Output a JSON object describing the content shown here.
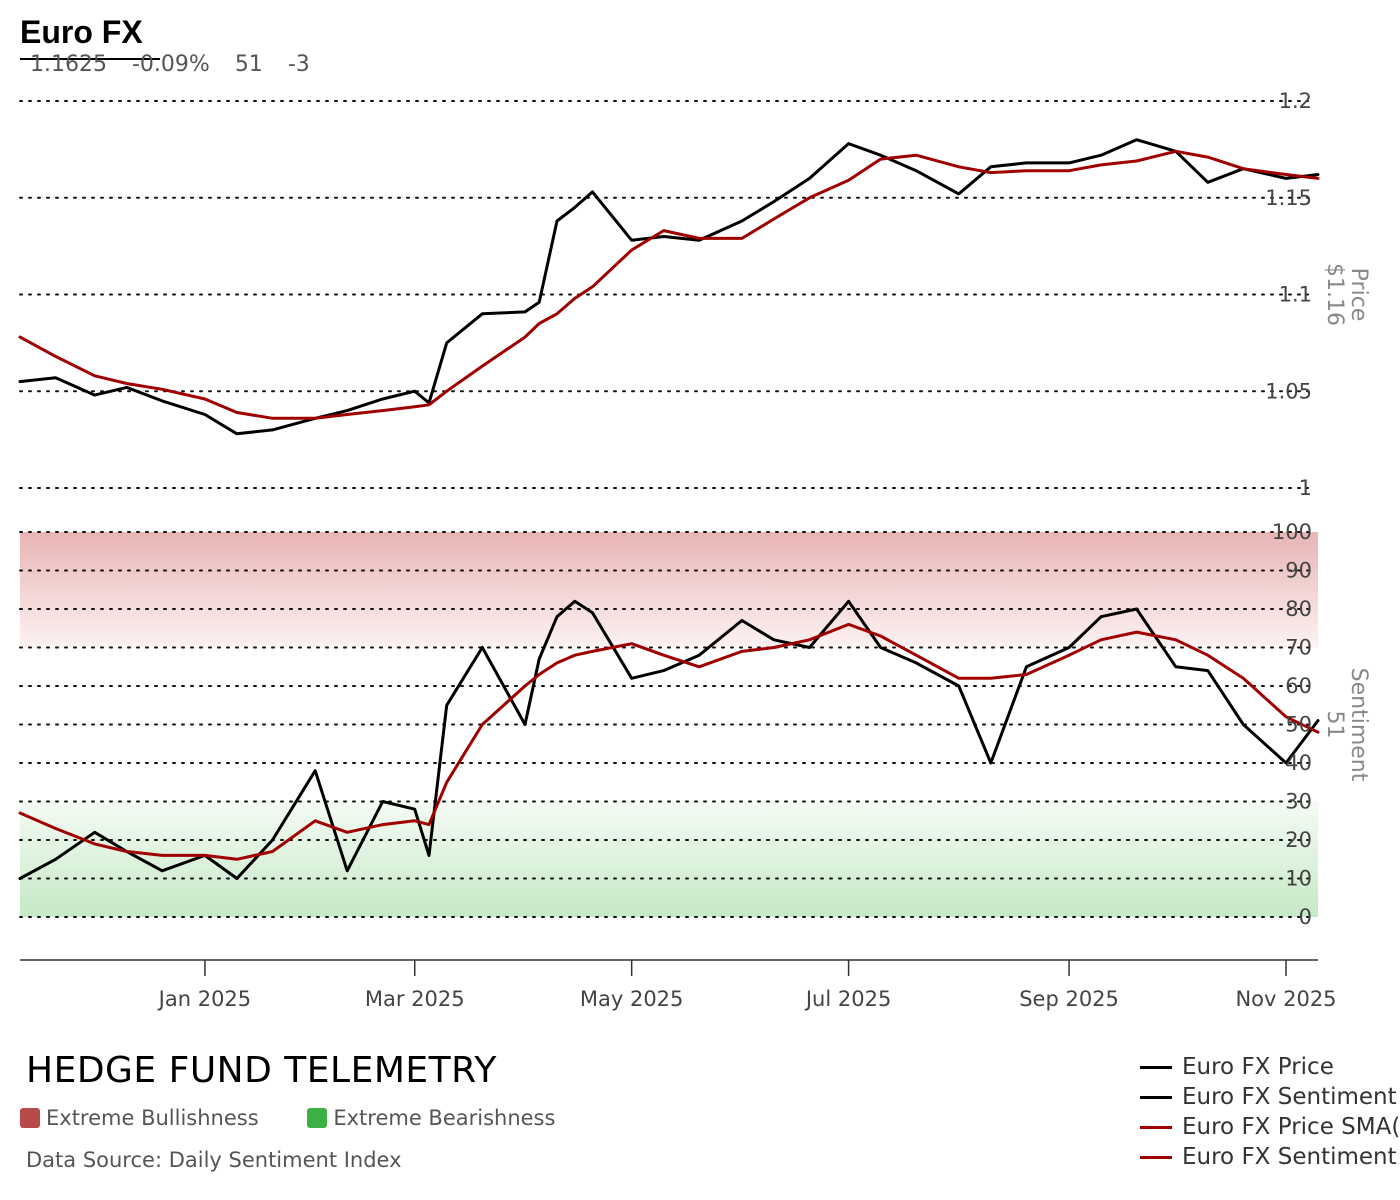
{
  "header": {
    "title": "Euro FX",
    "stats": [
      "1.1625",
      "-0.09%",
      "51",
      "-3"
    ]
  },
  "brand": "HEDGE FUND TELEMETRY",
  "zones": [
    {
      "label": "Extreme Bullishness",
      "color": "#b94a4a"
    },
    {
      "label": "Extreme Bearishness",
      "color": "#3cb043"
    }
  ],
  "source": "Data Source: Daily Sentiment Index",
  "legend": [
    {
      "label": "Euro FX Price",
      "color": "#000000"
    },
    {
      "label": "Euro FX Sentiment",
      "color": "#000000"
    },
    {
      "label": "Euro FX Price SMA(",
      "color": "#a00000"
    },
    {
      "label": "Euro FX Sentiment S",
      "color": "#a00000"
    }
  ],
  "chart_data": {
    "type": "line",
    "x_ticks": [
      "Jan 2025",
      "Mar 2025",
      "May 2025",
      "Jul 2025",
      "Sep 2025",
      "Nov 2025"
    ],
    "x_range": [
      "2024-11-10",
      "2025-11-10"
    ],
    "panels": [
      {
        "name": "price",
        "axis_title": "Price",
        "axis_value": "$1.16",
        "ylim": [
          1.0,
          1.2
        ],
        "y_ticks": [
          "1",
          "1.05",
          "1.1",
          "1.15",
          "1.2"
        ],
        "x": [
          "2024-11-10",
          "2024-11-20",
          "2024-12-01",
          "2024-12-10",
          "2024-12-20",
          "2025-01-01",
          "2025-01-10",
          "2025-01-20",
          "2025-02-01",
          "2025-02-10",
          "2025-02-20",
          "2025-03-01",
          "2025-03-05",
          "2025-03-10",
          "2025-03-20",
          "2025-04-01",
          "2025-04-05",
          "2025-04-10",
          "2025-04-15",
          "2025-04-20",
          "2025-05-01",
          "2025-05-10",
          "2025-05-20",
          "2025-06-01",
          "2025-06-10",
          "2025-06-20",
          "2025-07-01",
          "2025-07-10",
          "2025-07-20",
          "2025-08-01",
          "2025-08-10",
          "2025-08-20",
          "2025-09-01",
          "2025-09-10",
          "2025-09-20",
          "2025-10-01",
          "2025-10-10",
          "2025-10-20",
          "2025-11-01",
          "2025-11-10"
        ],
        "series": [
          {
            "name": "Euro FX Price",
            "color": "#000000",
            "values": [
              1.055,
              1.057,
              1.048,
              1.052,
              1.045,
              1.038,
              1.028,
              1.03,
              1.036,
              1.04,
              1.046,
              1.05,
              1.044,
              1.075,
              1.09,
              1.091,
              1.096,
              1.138,
              1.145,
              1.153,
              1.128,
              1.13,
              1.128,
              1.138,
              1.148,
              1.16,
              1.178,
              1.172,
              1.164,
              1.152,
              1.166,
              1.168,
              1.168,
              1.172,
              1.18,
              1.174,
              1.158,
              1.165,
              1.16,
              1.162
            ]
          },
          {
            "name": "Euro FX Price SMA(",
            "color": "#a00000",
            "values": [
              1.078,
              1.068,
              1.058,
              1.054,
              1.051,
              1.046,
              1.039,
              1.036,
              1.036,
              1.038,
              1.04,
              1.042,
              1.043,
              1.05,
              1.063,
              1.078,
              1.085,
              1.09,
              1.098,
              1.104,
              1.123,
              1.133,
              1.129,
              1.129,
              1.139,
              1.15,
              1.159,
              1.17,
              1.172,
              1.166,
              1.163,
              1.164,
              1.164,
              1.167,
              1.169,
              1.174,
              1.171,
              1.165,
              1.162,
              1.16
            ]
          }
        ]
      },
      {
        "name": "sentiment",
        "axis_title": "Sentiment",
        "axis_value": "51",
        "ylim": [
          0,
          100
        ],
        "y_ticks": [
          "0",
          "10",
          "20",
          "30",
          "40",
          "50",
          "60",
          "70",
          "80",
          "90",
          "100"
        ],
        "bullish_zone": [
          70,
          100
        ],
        "bearish_zone": [
          0,
          30
        ],
        "x": [
          "2024-11-10",
          "2024-11-20",
          "2024-12-01",
          "2024-12-10",
          "2024-12-20",
          "2025-01-01",
          "2025-01-10",
          "2025-01-20",
          "2025-02-01",
          "2025-02-10",
          "2025-02-20",
          "2025-03-01",
          "2025-03-05",
          "2025-03-10",
          "2025-03-20",
          "2025-04-01",
          "2025-04-05",
          "2025-04-10",
          "2025-04-15",
          "2025-04-20",
          "2025-05-01",
          "2025-05-10",
          "2025-05-20",
          "2025-06-01",
          "2025-06-10",
          "2025-06-20",
          "2025-07-01",
          "2025-07-10",
          "2025-07-20",
          "2025-08-01",
          "2025-08-10",
          "2025-08-20",
          "2025-09-01",
          "2025-09-10",
          "2025-09-20",
          "2025-10-01",
          "2025-10-10",
          "2025-10-20",
          "2025-11-01",
          "2025-11-10"
        ],
        "series": [
          {
            "name": "Euro FX Sentiment",
            "color": "#000000",
            "values": [
              10,
              15,
              22,
              17,
              12,
              16,
              10,
              20,
              38,
              12,
              30,
              28,
              16,
              55,
              70,
              50,
              67,
              78,
              82,
              79,
              62,
              64,
              68,
              77,
              72,
              70,
              82,
              70,
              66,
              60,
              40,
              65,
              70,
              78,
              80,
              65,
              64,
              50,
              40,
              51
            ]
          },
          {
            "name": "Euro FX Sentiment S",
            "color": "#a00000",
            "values": [
              27,
              23,
              19,
              17,
              16,
              16,
              15,
              17,
              25,
              22,
              24,
              25,
              24,
              35,
              50,
              60,
              63,
              66,
              68,
              69,
              71,
              68,
              65,
              69,
              70,
              72,
              76,
              73,
              68,
              62,
              62,
              63,
              68,
              72,
              74,
              72,
              68,
              62,
              52,
              48
            ]
          }
        ]
      }
    ]
  }
}
